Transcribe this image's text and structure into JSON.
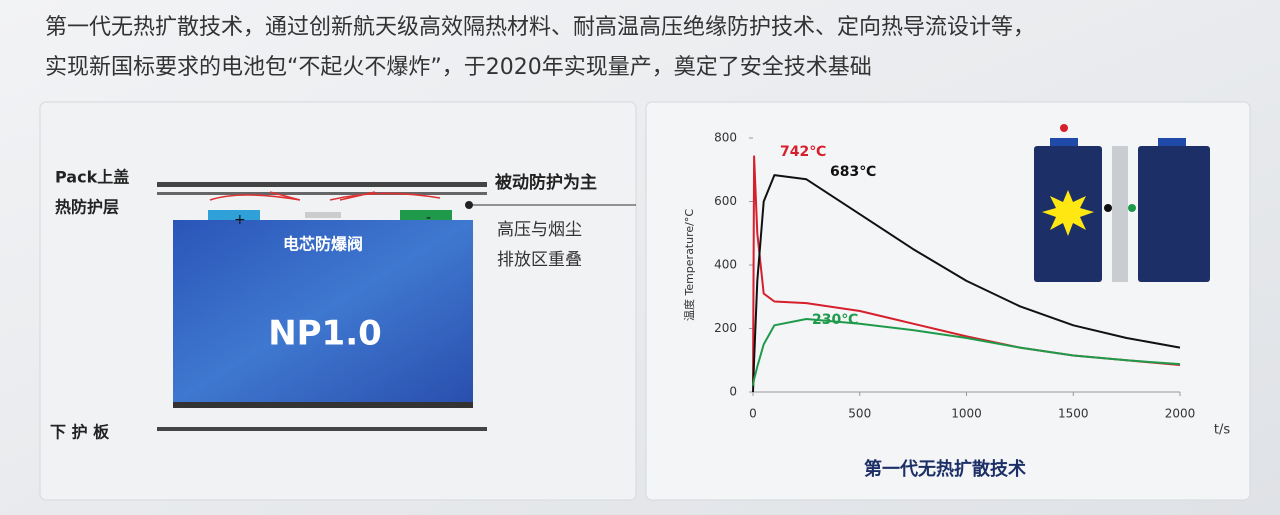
{
  "header": {
    "lines": [
      "第一代无热扩散技术，通过创新航天级高效隔热材料、耐高温高压绝缘防护技术、定向热导流设计等，",
      "实现新国标要求的电池包“不起火不爆炸”，于2020年实现量产，奠定了安全技术基础"
    ]
  },
  "diagram": {
    "pack_cover": "Pack上盖",
    "thermal_layer": "热防护层",
    "passive": "被动防护为主",
    "overlap_1": "高压与烟尘",
    "overlap_2": "排放区重叠",
    "vent": "电芯防爆阀",
    "cell": "NP1.0",
    "plus": "+",
    "minus": "-",
    "bottom": "下 护 板"
  },
  "chart_data": {
    "type": "line",
    "title": "第一代无热扩散技术",
    "y_label": "温度 Temperature/°C",
    "x_label": "t/s",
    "x": [
      0,
      5,
      20,
      50,
      100,
      250,
      500,
      750,
      1000,
      1250,
      1500,
      1750,
      2000
    ],
    "series": [
      {
        "name": "742℃",
        "color": "#d61f2c",
        "values": [
          20,
          742,
          500,
          310,
          285,
          280,
          255,
          215,
          175,
          140,
          115,
          100,
          85
        ]
      },
      {
        "name": "683℃",
        "color": "#111111",
        "values": [
          0,
          100,
          350,
          600,
          683,
          670,
          560,
          450,
          350,
          270,
          210,
          170,
          140
        ]
      },
      {
        "name": "230℃",
        "color": "#1f9a4a",
        "values": [
          20,
          40,
          80,
          150,
          210,
          230,
          215,
          195,
          170,
          140,
          115,
          100,
          88
        ]
      }
    ],
    "xlim": [
      0,
      2000
    ],
    "xticks": [
      0,
      500,
      1000,
      1500,
      2000
    ],
    "ylim": [
      0,
      800
    ],
    "yticks": [
      0,
      200,
      400,
      600,
      800
    ]
  }
}
